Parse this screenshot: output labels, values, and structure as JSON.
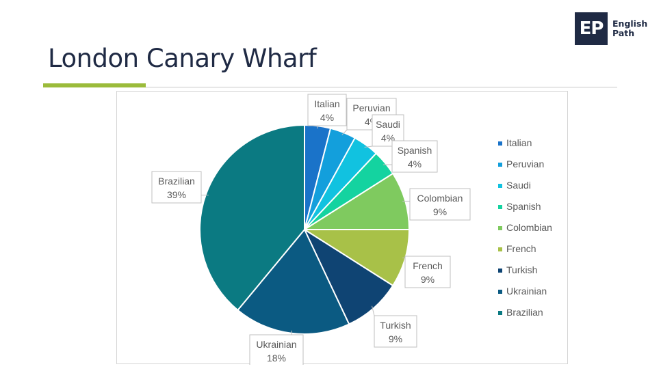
{
  "header": {
    "title": "London Canary Wharf"
  },
  "logo": {
    "mark": "EP",
    "line1": "English",
    "line2": "Path",
    "color": "#1f2a44"
  },
  "accent_color": "#9bbb3b",
  "chart_data": {
    "type": "pie",
    "title": "",
    "legend_position": "right",
    "labels": [
      "Italian",
      "Peruvian",
      "Saudi",
      "Spanish",
      "Colombian",
      "French",
      "Turkish",
      "Ukrainian",
      "Brazilian"
    ],
    "values": [
      4,
      4,
      4,
      4,
      9,
      9,
      9,
      18,
      39
    ],
    "display_labels": [
      "4%",
      "4%",
      "4%",
      "4%",
      "9%",
      "9%",
      "9%",
      "18%",
      "39%"
    ],
    "colors": [
      "#1a73c9",
      "#139fdc",
      "#11c2e0",
      "#14d3a0",
      "#7fca5f",
      "#a8c148",
      "#0f4473",
      "#0b5a82",
      "#0b7a82"
    ]
  }
}
